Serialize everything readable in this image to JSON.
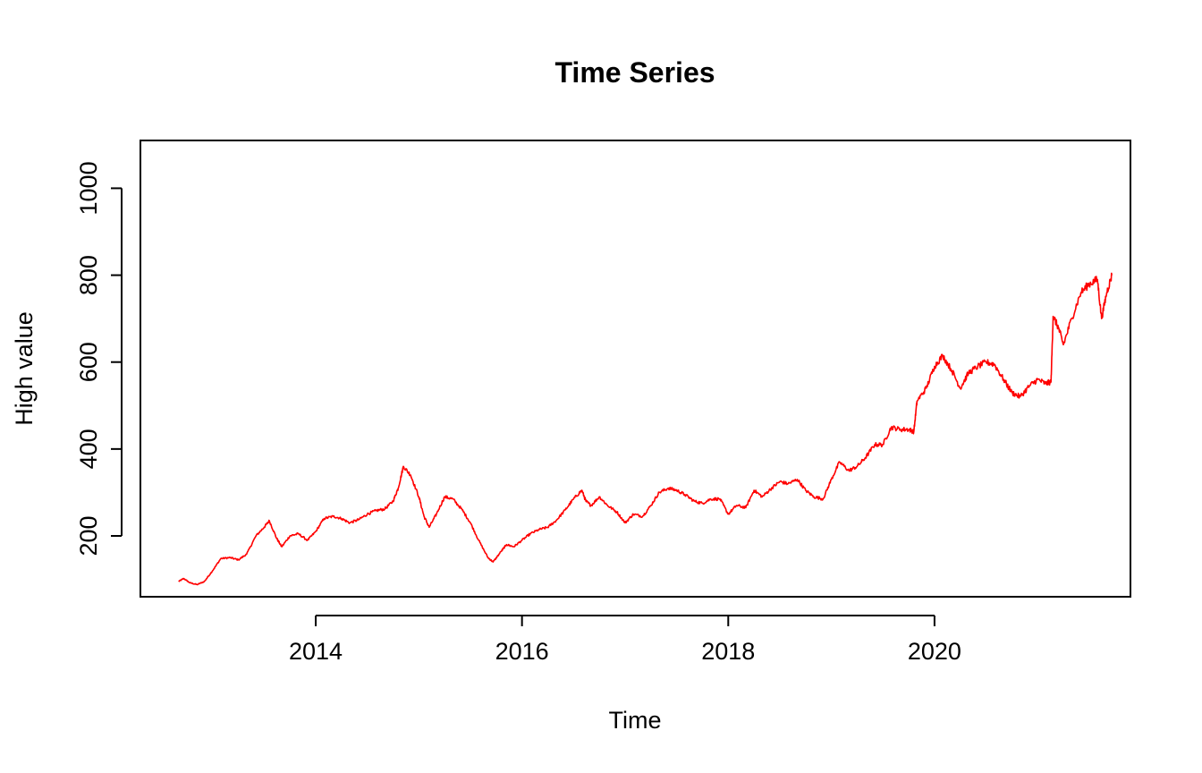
{
  "chart_data": {
    "type": "line",
    "title": "Time Series",
    "xlabel": "Time",
    "ylabel": "High value",
    "xlim": [
      2012.3,
      2021.9
    ],
    "ylim": [
      60,
      1110
    ],
    "x_ticks": [
      2014,
      2016,
      2018,
      2020
    ],
    "y_ticks": [
      200,
      400,
      600,
      800,
      1000
    ],
    "grid": false,
    "series": [
      {
        "color": "#ff0000",
        "points": [
          [
            2012.67,
            95
          ],
          [
            2012.72,
            102
          ],
          [
            2012.78,
            92
          ],
          [
            2012.85,
            88
          ],
          [
            2012.92,
            95
          ],
          [
            2013.0,
            120
          ],
          [
            2013.08,
            148
          ],
          [
            2013.17,
            150
          ],
          [
            2013.25,
            145
          ],
          [
            2013.33,
            158
          ],
          [
            2013.42,
            200
          ],
          [
            2013.5,
            220
          ],
          [
            2013.55,
            235
          ],
          [
            2013.62,
            195
          ],
          [
            2013.67,
            175
          ],
          [
            2013.75,
            200
          ],
          [
            2013.83,
            205
          ],
          [
            2013.92,
            190
          ],
          [
            2014.0,
            210
          ],
          [
            2014.08,
            240
          ],
          [
            2014.17,
            245
          ],
          [
            2014.25,
            240
          ],
          [
            2014.33,
            230
          ],
          [
            2014.42,
            238
          ],
          [
            2014.5,
            250
          ],
          [
            2014.58,
            258
          ],
          [
            2014.67,
            262
          ],
          [
            2014.75,
            280
          ],
          [
            2014.8,
            310
          ],
          [
            2014.85,
            360
          ],
          [
            2014.92,
            340
          ],
          [
            2015.0,
            290
          ],
          [
            2015.05,
            245
          ],
          [
            2015.1,
            220
          ],
          [
            2015.17,
            250
          ],
          [
            2015.25,
            290
          ],
          [
            2015.33,
            285
          ],
          [
            2015.42,
            260
          ],
          [
            2015.5,
            230
          ],
          [
            2015.58,
            190
          ],
          [
            2015.67,
            150
          ],
          [
            2015.72,
            140
          ],
          [
            2015.8,
            165
          ],
          [
            2015.85,
            180
          ],
          [
            2015.92,
            175
          ],
          [
            2016.0,
            190
          ],
          [
            2016.08,
            205
          ],
          [
            2016.17,
            215
          ],
          [
            2016.25,
            220
          ],
          [
            2016.33,
            235
          ],
          [
            2016.42,
            260
          ],
          [
            2016.5,
            285
          ],
          [
            2016.58,
            305
          ],
          [
            2016.62,
            280
          ],
          [
            2016.67,
            270
          ],
          [
            2016.75,
            290
          ],
          [
            2016.83,
            270
          ],
          [
            2016.92,
            255
          ],
          [
            2017.0,
            230
          ],
          [
            2017.08,
            250
          ],
          [
            2017.17,
            245
          ],
          [
            2017.25,
            270
          ],
          [
            2017.33,
            300
          ],
          [
            2017.42,
            310
          ],
          [
            2017.5,
            305
          ],
          [
            2017.58,
            295
          ],
          [
            2017.67,
            280
          ],
          [
            2017.75,
            275
          ],
          [
            2017.83,
            285
          ],
          [
            2017.92,
            285
          ],
          [
            2018.0,
            250
          ],
          [
            2018.08,
            270
          ],
          [
            2018.17,
            265
          ],
          [
            2018.25,
            305
          ],
          [
            2018.33,
            290
          ],
          [
            2018.42,
            310
          ],
          [
            2018.5,
            325
          ],
          [
            2018.58,
            320
          ],
          [
            2018.67,
            330
          ],
          [
            2018.75,
            305
          ],
          [
            2018.83,
            290
          ],
          [
            2018.92,
            285
          ],
          [
            2019.0,
            330
          ],
          [
            2019.08,
            370
          ],
          [
            2019.17,
            350
          ],
          [
            2019.25,
            360
          ],
          [
            2019.33,
            380
          ],
          [
            2019.42,
            410
          ],
          [
            2019.5,
            410
          ],
          [
            2019.58,
            450
          ],
          [
            2019.67,
            445
          ],
          [
            2019.75,
            445
          ],
          [
            2019.8,
            440
          ],
          [
            2019.83,
            510
          ],
          [
            2019.92,
            540
          ],
          [
            2020.0,
            590
          ],
          [
            2020.08,
            615
          ],
          [
            2020.17,
            580
          ],
          [
            2020.25,
            540
          ],
          [
            2020.33,
            575
          ],
          [
            2020.42,
            590
          ],
          [
            2020.5,
            600
          ],
          [
            2020.58,
            595
          ],
          [
            2020.67,
            560
          ],
          [
            2020.75,
            530
          ],
          [
            2020.83,
            520
          ],
          [
            2020.92,
            545
          ],
          [
            2021.0,
            560
          ],
          [
            2021.08,
            550
          ],
          [
            2021.13,
            555
          ],
          [
            2021.15,
            705
          ],
          [
            2021.2,
            680
          ],
          [
            2021.25,
            640
          ],
          [
            2021.33,
            700
          ],
          [
            2021.42,
            760
          ],
          [
            2021.5,
            780
          ],
          [
            2021.58,
            790
          ],
          [
            2021.62,
            700
          ],
          [
            2021.67,
            760
          ],
          [
            2021.72,
            800
          ]
        ]
      }
    ]
  }
}
